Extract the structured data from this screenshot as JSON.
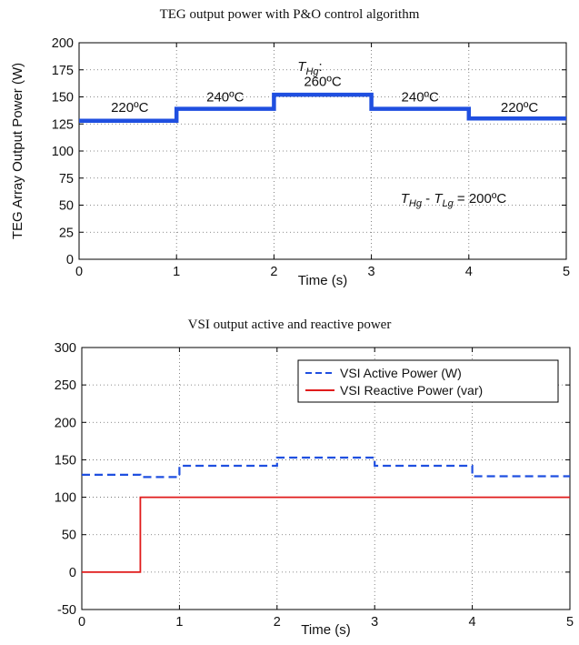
{
  "chart_data": [
    {
      "type": "line",
      "title": "TEG output power with P&O control algorithm",
      "xlabel": "Time (s)",
      "ylabel": "TEG Array Output Power (W)",
      "xlim": [
        0,
        5
      ],
      "ylim": [
        0,
        200
      ],
      "xticks": [
        "0",
        "1",
        "2",
        "3",
        "4",
        "5"
      ],
      "yticks": [
        "0",
        "25",
        "50",
        "75",
        "100",
        "125",
        "150",
        "175",
        "200"
      ],
      "grid": true,
      "series": [
        {
          "color": "#1f4fe0",
          "x": [
            0,
            1,
            1,
            2,
            2,
            3,
            3,
            4,
            4,
            5
          ],
          "y": [
            128,
            128,
            139,
            139,
            152,
            152,
            139,
            139,
            130,
            130
          ]
        }
      ],
      "annotations": [
        {
          "text": "220ºC",
          "x": 0.52,
          "y": 136
        },
        {
          "text": "240ºC",
          "x": 1.5,
          "y": 146
        },
        {
          "text": "260ºC",
          "x": 2.5,
          "y": 160
        },
        {
          "text": "240ºC",
          "x": 3.5,
          "y": 146
        },
        {
          "text": "220ºC",
          "x": 4.52,
          "y": 136
        }
      ],
      "annotation_thg": {
        "text": "THg:",
        "base": "T",
        "sub": "Hg",
        "suffix": ":"
      },
      "annotation_formula": {
        "t1": "T",
        "s1": "Hg",
        "minus": " - ",
        "t2": "T",
        "s2": "Lg",
        "rest": " = 200ºC"
      }
    },
    {
      "type": "line",
      "title": "VSI output active and reactive power",
      "xlabel": "Time (s)",
      "ylabel": "",
      "xlim": [
        0,
        5
      ],
      "ylim": [
        -50,
        300
      ],
      "xticks": [
        "0",
        "1",
        "2",
        "3",
        "4",
        "5"
      ],
      "yticks": [
        "-50",
        "0",
        "50",
        "100",
        "150",
        "200",
        "250",
        "300"
      ],
      "grid": true,
      "legend_position": "top-right",
      "series": [
        {
          "name": "VSI Active Power (W)",
          "style": "dashed",
          "color": "#1f4fe0",
          "x": [
            0,
            0.6,
            0.6,
            1,
            1,
            2,
            2,
            3,
            3,
            4,
            4,
            5
          ],
          "y": [
            130,
            130,
            127,
            127,
            142,
            142,
            153,
            153,
            142,
            142,
            128,
            128
          ]
        },
        {
          "name": "VSI Reactive Power (var)",
          "style": "solid",
          "color": "#e01b1b",
          "x": [
            0,
            0.6,
            0.6,
            1,
            1,
            2,
            2,
            3,
            3,
            4,
            4,
            5
          ],
          "y": [
            0,
            0,
            100,
            100,
            100,
            100,
            100,
            100,
            100,
            100,
            100,
            100
          ]
        }
      ]
    }
  ]
}
